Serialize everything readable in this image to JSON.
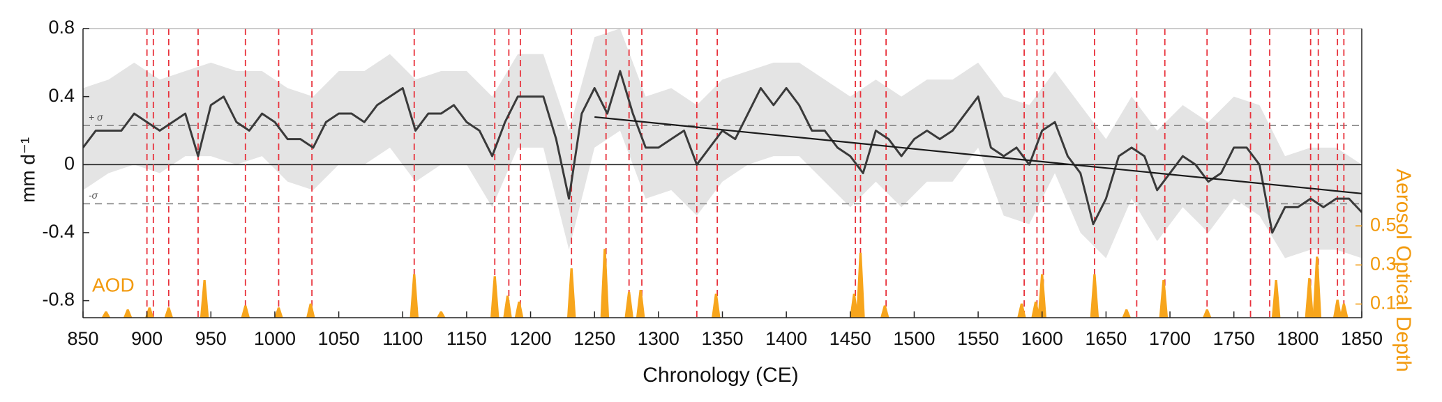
{
  "chart_data": {
    "type": "line",
    "xlabel": "Chronology (CE)",
    "ylabel": "mm d⁻¹",
    "y2label": "Aerosol Optical Depth",
    "annotation": "AOD",
    "xlim": [
      850,
      1850
    ],
    "xticks": [
      850,
      900,
      950,
      1000,
      1050,
      1100,
      1150,
      1200,
      1250,
      1300,
      1350,
      1400,
      1450,
      1500,
      1550,
      1600,
      1650,
      1700,
      1750,
      1800,
      1850
    ],
    "ylim": [
      -0.9,
      0.8
    ],
    "yticks": [
      -0.8,
      -0.4,
      0,
      0.4,
      0.8
    ],
    "y2lim": [
      0.03,
      1.51
    ],
    "y2ticks": [
      0.1,
      0.3,
      0.5
    ],
    "y2color": "#f29a0e",
    "baseline": 0,
    "sigma_lines": [
      {
        "value": 0.23,
        "label": "+ σ"
      },
      {
        "value": -0.23,
        "label": "-σ"
      }
    ],
    "series": [
      {
        "color": "#3a3a3a",
        "x": [
          850,
          860,
          870,
          880,
          890,
          900,
          910,
          920,
          930,
          940,
          950,
          960,
          970,
          980,
          990,
          1000,
          1010,
          1020,
          1030,
          1040,
          1050,
          1060,
          1070,
          1080,
          1090,
          1100,
          1110,
          1120,
          1130,
          1140,
          1150,
          1160,
          1170,
          1180,
          1190,
          1200,
          1210,
          1220,
          1230,
          1240,
          1250,
          1260,
          1270,
          1280,
          1290,
          1300,
          1310,
          1320,
          1330,
          1340,
          1350,
          1360,
          1370,
          1380,
          1390,
          1400,
          1410,
          1420,
          1430,
          1440,
          1450,
          1460,
          1470,
          1480,
          1490,
          1500,
          1510,
          1520,
          1530,
          1540,
          1550,
          1560,
          1570,
          1580,
          1590,
          1600,
          1610,
          1620,
          1630,
          1640,
          1650,
          1660,
          1670,
          1680,
          1690,
          1700,
          1710,
          1720,
          1730,
          1740,
          1750,
          1760,
          1770,
          1780,
          1790,
          1800,
          1810,
          1820,
          1830,
          1840,
          1850
        ],
        "values": [
          0.1,
          0.2,
          0.2,
          0.2,
          0.3,
          0.25,
          0.2,
          0.25,
          0.3,
          0.05,
          0.35,
          0.4,
          0.25,
          0.2,
          0.3,
          0.25,
          0.15,
          0.15,
          0.1,
          0.25,
          0.3,
          0.3,
          0.25,
          0.35,
          0.4,
          0.45,
          0.2,
          0.3,
          0.3,
          0.35,
          0.25,
          0.2,
          0.05,
          0.25,
          0.4,
          0.4,
          0.4,
          0.15,
          -0.2,
          0.3,
          0.45,
          0.3,
          0.55,
          0.3,
          0.1,
          0.1,
          0.15,
          0.2,
          0,
          0.1,
          0.2,
          0.15,
          0.3,
          0.45,
          0.35,
          0.45,
          0.35,
          0.2,
          0.2,
          0.1,
          0.05,
          -0.05,
          0.2,
          0.15,
          0.05,
          0.15,
          0.2,
          0.15,
          0.2,
          0.3,
          0.4,
          0.1,
          0.05,
          0.1,
          0,
          0.2,
          0.25,
          0.05,
          -0.05,
          -0.35,
          -0.2,
          0.05,
          0.1,
          0.05,
          -0.15,
          -0.05,
          0.05,
          0,
          -0.1,
          -0.05,
          0.1,
          0.1,
          0,
          -0.4,
          -0.25,
          -0.25,
          -0.2,
          -0.25,
          -0.2,
          -0.2,
          -0.28
        ]
      }
    ],
    "band": {
      "color": "#e4e4e4",
      "x": [
        850,
        870,
        890,
        910,
        930,
        950,
        970,
        990,
        1010,
        1030,
        1050,
        1070,
        1090,
        1110,
        1130,
        1150,
        1170,
        1190,
        1210,
        1230,
        1250,
        1270,
        1290,
        1310,
        1330,
        1350,
        1370,
        1390,
        1410,
        1430,
        1450,
        1470,
        1490,
        1510,
        1530,
        1550,
        1570,
        1590,
        1610,
        1630,
        1650,
        1670,
        1690,
        1710,
        1730,
        1750,
        1770,
        1790,
        1810,
        1830,
        1850
      ],
      "upper": [
        0.45,
        0.5,
        0.6,
        0.5,
        0.55,
        0.6,
        0.55,
        0.55,
        0.45,
        0.4,
        0.55,
        0.55,
        0.65,
        0.5,
        0.55,
        0.55,
        0.4,
        0.65,
        0.65,
        0.2,
        0.75,
        0.8,
        0.4,
        0.45,
        0.35,
        0.5,
        0.55,
        0.6,
        0.6,
        0.5,
        0.4,
        0.5,
        0.4,
        0.5,
        0.5,
        0.6,
        0.4,
        0.35,
        0.55,
        0.35,
        0.15,
        0.4,
        0.2,
        0.35,
        0.25,
        0.4,
        0.35,
        0.05,
        0.1,
        0.1,
        0
      ],
      "lower": [
        -0.15,
        -0.05,
        0,
        -0.05,
        0.05,
        0.05,
        0,
        0.05,
        -0.1,
        -0.15,
        0,
        0,
        0.1,
        -0.1,
        0,
        0,
        -0.25,
        0.1,
        0.1,
        -0.5,
        0.1,
        0.2,
        -0.2,
        -0.15,
        -0.3,
        -0.1,
        0,
        0.05,
        0.05,
        -0.1,
        -0.25,
        -0.1,
        -0.25,
        -0.1,
        -0.1,
        0.1,
        -0.3,
        -0.35,
        -0.05,
        -0.4,
        -0.55,
        -0.2,
        -0.45,
        -0.25,
        -0.4,
        -0.2,
        -0.3,
        -0.55,
        -0.5,
        -0.5,
        -0.55
      ]
    },
    "trend": {
      "color": "#1a1a1a",
      "x": [
        1250,
        1850
      ],
      "values": [
        0.28,
        -0.17
      ]
    },
    "eruptions": {
      "color": "#e8323c",
      "x": [
        900,
        905,
        917,
        940,
        977,
        1003,
        1029,
        1109,
        1172,
        1183,
        1192,
        1232,
        1259,
        1277,
        1287,
        1330,
        1346,
        1454,
        1458,
        1478,
        1586,
        1596,
        1601,
        1641,
        1674,
        1696,
        1729,
        1763,
        1778,
        1810,
        1816,
        1831,
        1836
      ]
    },
    "aod": {
      "color": "#f7a51c",
      "axis": "y2",
      "x": [
        868,
        885,
        902,
        917,
        945,
        977,
        1003,
        1028,
        1109,
        1130,
        1172,
        1182,
        1191,
        1232,
        1258,
        1277,
        1286,
        1345,
        1453,
        1458,
        1477,
        1584,
        1595,
        1600,
        1641,
        1666,
        1695,
        1729,
        1783,
        1809,
        1815,
        1831,
        1836
      ],
      "values": [
        0.06,
        0.07,
        0.08,
        0.08,
        0.22,
        0.09,
        0.08,
        0.1,
        0.25,
        0.06,
        0.24,
        0.14,
        0.11,
        0.28,
        0.38,
        0.16,
        0.17,
        0.15,
        0.15,
        0.36,
        0.09,
        0.1,
        0.11,
        0.25,
        0.25,
        0.07,
        0.22,
        0.07,
        0.22,
        0.23,
        0.34,
        0.12,
        0.1
      ]
    }
  }
}
